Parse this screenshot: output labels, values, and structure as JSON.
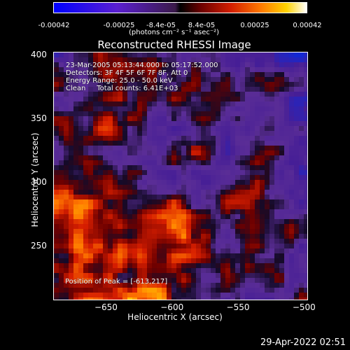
{
  "colorbar": {
    "ticks": [
      "-0.00042",
      "-0.00025",
      "-8.4e-05",
      "8.4e-05",
      "0.00025",
      "0.00042"
    ],
    "unit": "(photons cm⁻² s⁻¹ asec⁻²)"
  },
  "chart_data": {
    "type": "heatmap",
    "title": "Reconstructed RHESSI Image",
    "xlabel": "Heliocentric X (arcsec)",
    "ylabel": "Heliocentric Y (arcsec)",
    "xlim": [
      -690,
      -497
    ],
    "ylim": [
      207,
      402
    ],
    "x_ticks": [
      -650,
      -600,
      -550,
      -500
    ],
    "y_ticks": [
      250,
      300,
      350,
      400
    ],
    "colorbar_range": [
      -0.00042,
      0.00042
    ],
    "info_lines": [
      "23-Mar-2005 05:13:44.000 to 05:17:52.000",
      "Detectors: 3F 4F 5F 6F 7F 8F, Att 0",
      "Energy Range: 25.0 - 50.0 keV",
      "Clean     Total counts: 6.41E+03"
    ],
    "peak_text": "Position of Peak = [-613,217]"
  },
  "timestamp": "29-Apr-2022 02:51"
}
